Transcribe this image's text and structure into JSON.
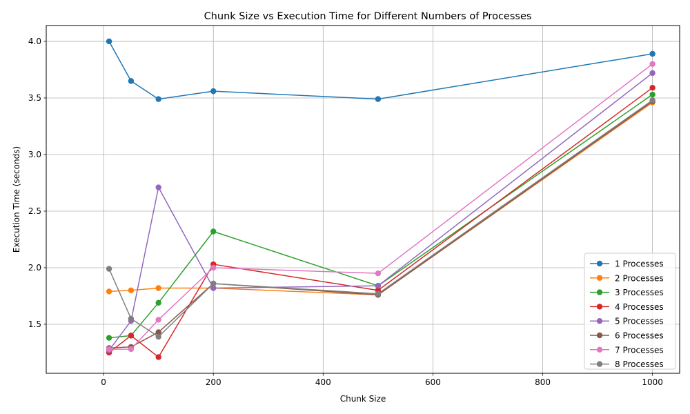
{
  "chart_data": {
    "type": "line",
    "title": "Chunk Size vs Execution Time for Different Numbers of Processes",
    "xlabel": "Chunk Size",
    "ylabel": "Execution Time (seconds)",
    "x": [
      10,
      50,
      100,
      200,
      500,
      1000
    ],
    "xlim": [
      -104.5,
      1049.5
    ],
    "ylim": [
      1.067,
      4.14
    ],
    "xticks": [
      0,
      200,
      400,
      600,
      800,
      1000
    ],
    "xtick_labels": [
      "0",
      "200",
      "400",
      "600",
      "800",
      "1000"
    ],
    "yticks": [
      1.5,
      2.0,
      2.5,
      3.0,
      3.5,
      4.0
    ],
    "ytick_labels": [
      "1.5",
      "2.0",
      "2.5",
      "3.0",
      "3.5",
      "4.0"
    ],
    "grid": true,
    "legend_position": "lower right",
    "series": [
      {
        "name": "1 Processes",
        "color": "#1f77b4",
        "values": [
          4.0,
          3.65,
          3.49,
          3.56,
          3.49,
          3.89
        ]
      },
      {
        "name": "2 Processes",
        "color": "#ff7f0e",
        "values": [
          1.79,
          1.8,
          1.82,
          1.82,
          1.76,
          3.46
        ]
      },
      {
        "name": "3 Processes",
        "color": "#2ca02c",
        "values": [
          1.38,
          1.4,
          1.69,
          2.32,
          1.84,
          3.53
        ]
      },
      {
        "name": "4 Processes",
        "color": "#d62728",
        "values": [
          1.25,
          1.4,
          1.21,
          2.03,
          1.8,
          3.59
        ]
      },
      {
        "name": "5 Processes",
        "color": "#9467bd",
        "values": [
          1.27,
          1.53,
          2.71,
          1.82,
          1.84,
          3.72
        ]
      },
      {
        "name": "6 Processes",
        "color": "#8c564b",
        "values": [
          1.29,
          1.3,
          1.43,
          1.86,
          1.76,
          3.47
        ]
      },
      {
        "name": "7 Processes",
        "color": "#e377c2",
        "values": [
          1.28,
          1.28,
          1.54,
          2.0,
          1.95,
          3.8
        ]
      },
      {
        "name": "8 Processes",
        "color": "#7f7f7f",
        "values": [
          1.99,
          1.55,
          1.39,
          1.86,
          1.77,
          3.48
        ]
      }
    ]
  }
}
